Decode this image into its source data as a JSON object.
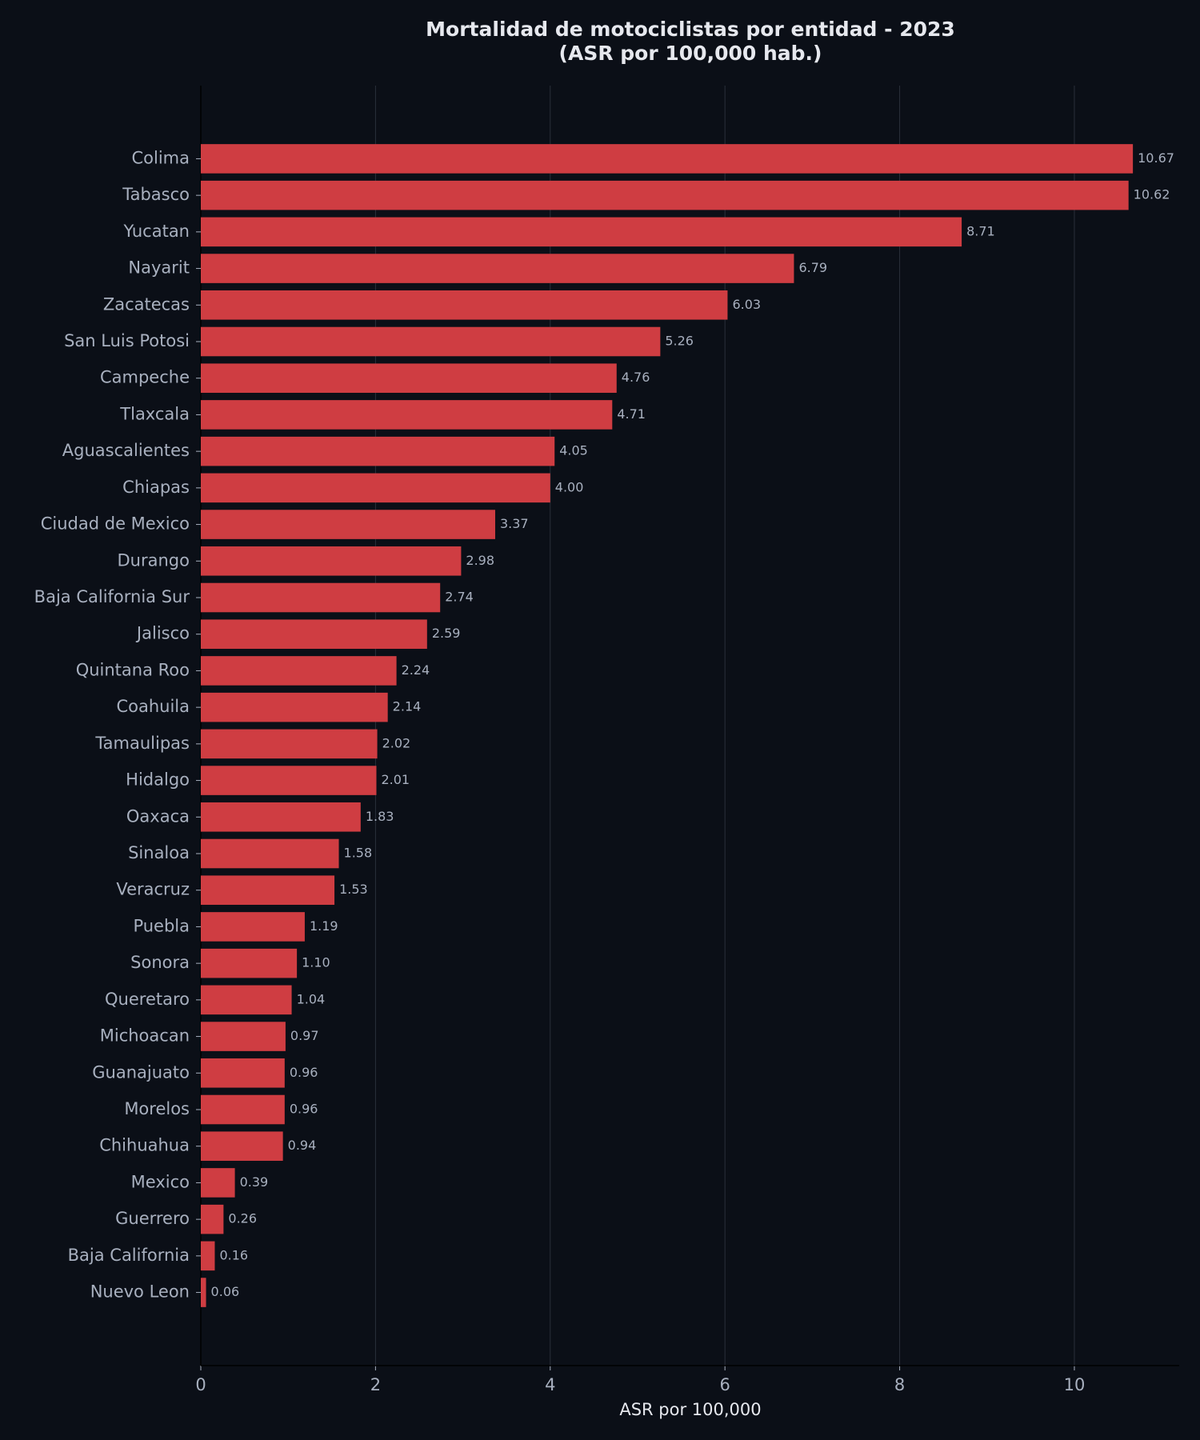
{
  "chart_data": {
    "type": "barh",
    "title": "Mortalidad de motociclistas por entidad - 2023",
    "subtitle": "(ASR por 100,000 hab.)",
    "x_label": "ASR por 100,000",
    "categories": [
      "Colima",
      "Tabasco",
      "Yucatan",
      "Nayarit",
      "Zacatecas",
      "San Luis Potosi",
      "Campeche",
      "Tlaxcala",
      "Aguascalientes",
      "Chiapas",
      "Ciudad de Mexico",
      "Durango",
      "Baja California Sur",
      "Jalisco",
      "Quintana Roo",
      "Coahuila",
      "Tamaulipas",
      "Hidalgo",
      "Oaxaca",
      "Sinaloa",
      "Veracruz",
      "Puebla",
      "Sonora",
      "Queretaro",
      "Michoacan",
      "Guanajuato",
      "Morelos",
      "Chihuahua",
      "Mexico",
      "Guerrero",
      "Baja California",
      "Nuevo Leon"
    ],
    "values": [
      10.67,
      10.62,
      8.71,
      6.79,
      6.03,
      5.26,
      4.76,
      4.71,
      4.05,
      4.0,
      3.37,
      2.98,
      2.74,
      2.59,
      2.24,
      2.14,
      2.02,
      2.01,
      1.83,
      1.58,
      1.53,
      1.19,
      1.1,
      1.04,
      0.97,
      0.96,
      0.96,
      0.94,
      0.39,
      0.26,
      0.16,
      0.06
    ],
    "value_labels": [
      "10.67",
      "10.62",
      "8.71",
      "6.79",
      "6.03",
      "5.26",
      "4.76",
      "4.71",
      "4.05",
      "4.00",
      "3.37",
      "2.98",
      "2.74",
      "2.59",
      "2.24",
      "2.14",
      "2.02",
      "2.01",
      "1.83",
      "1.58",
      "1.53",
      "1.19",
      "1.10",
      "1.04",
      "0.97",
      "0.96",
      "0.96",
      "0.94",
      "0.39",
      "0.26",
      "0.16",
      "0.06"
    ],
    "color": "#cf3d42",
    "xlim": [
      0,
      11.2
    ],
    "xticks": [
      0,
      2,
      4,
      6,
      8,
      10
    ],
    "grid": true
  }
}
